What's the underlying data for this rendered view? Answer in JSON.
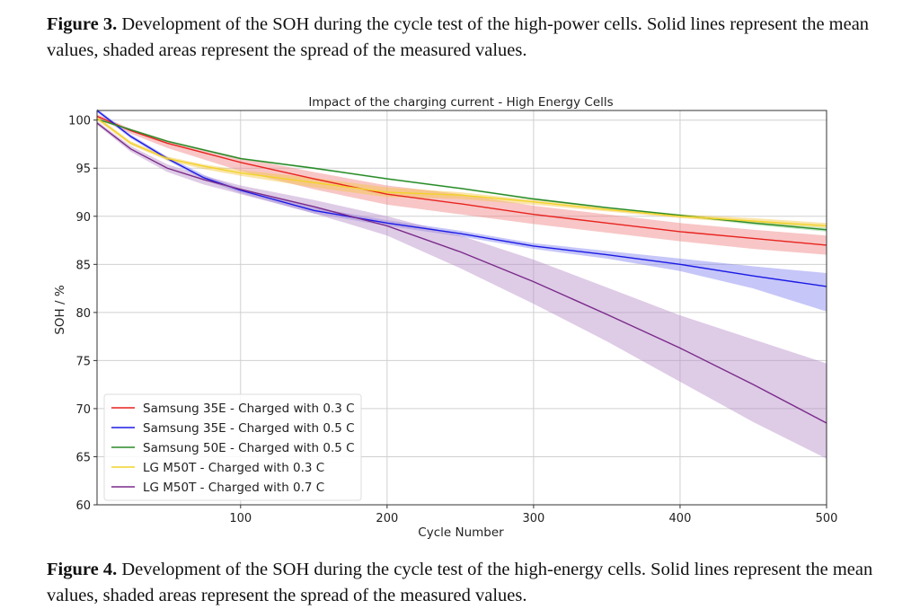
{
  "captions": {
    "top": {
      "label": "Figure 3.",
      "text": " Development of the SOH during the cycle test of the high-power cells. Solid lines represent the mean values, shaded areas represent the spread of the measured values."
    },
    "bottom": {
      "label": "Figure 4.",
      "text": " Development of the SOH during the cycle test of the high-energy cells. Solid lines represent the mean values, shaded areas represent the spread of the measured values."
    }
  },
  "chart_data": {
    "type": "line",
    "title": "Impact of the charging current - High Energy Cells",
    "xlabel": "Cycle Number",
    "ylabel": "SOH / %",
    "xlim": [
      2,
      500
    ],
    "ylim": [
      60,
      101
    ],
    "xticks": [
      100,
      200,
      300,
      400,
      500
    ],
    "yticks": [
      60,
      65,
      70,
      75,
      80,
      85,
      90,
      95,
      100
    ],
    "grid": true,
    "legend_position": "bottom-left",
    "x": [
      2,
      25,
      50,
      75,
      100,
      150,
      200,
      250,
      300,
      350,
      400,
      450,
      500
    ],
    "series": [
      {
        "name": "Samsung 35E - Charged with 0.3 C",
        "color": "#e8231f",
        "band_color": "#f08080",
        "values": [
          100.4,
          98.9,
          97.6,
          96.6,
          95.6,
          93.9,
          92.3,
          91.3,
          90.2,
          89.3,
          88.4,
          87.7,
          87.0
        ],
        "lower": [
          100.2,
          98.6,
          97.1,
          95.9,
          94.7,
          92.8,
          91.2,
          90.2,
          89.2,
          88.3,
          87.4,
          86.6,
          86.0
        ],
        "upper": [
          100.6,
          99.1,
          97.9,
          97.0,
          96.1,
          94.6,
          93.2,
          92.3,
          91.1,
          90.2,
          89.3,
          88.6,
          88.0
        ]
      },
      {
        "name": "Samsung 35E - Charged with 0.5 C",
        "color": "#1a1ae6",
        "band_color": "#8080f0",
        "values": [
          101.0,
          98.3,
          96.0,
          94.0,
          92.7,
          90.6,
          89.3,
          88.2,
          86.9,
          86.0,
          85.0,
          83.8,
          82.7
        ],
        "lower": [
          100.8,
          98.1,
          95.8,
          93.8,
          92.4,
          90.3,
          89.0,
          87.9,
          86.6,
          85.6,
          84.3,
          82.5,
          80.1
        ],
        "upper": [
          101.2,
          98.5,
          96.2,
          94.3,
          92.9,
          90.9,
          89.6,
          88.5,
          87.2,
          86.4,
          85.6,
          84.8,
          84.1
        ]
      },
      {
        "name": "Samsung 50E - Charged with 0.5 C",
        "color": "#2a8a2a",
        "band_color": "#7fcf7f",
        "values": [
          100.1,
          99.0,
          97.8,
          96.9,
          96.0,
          95.0,
          93.9,
          92.9,
          91.8,
          90.9,
          90.1,
          89.3,
          88.6
        ],
        "lower": [
          100.0,
          98.9,
          97.7,
          96.8,
          95.9,
          94.9,
          93.8,
          92.8,
          91.7,
          90.8,
          90.0,
          89.1,
          88.4
        ],
        "upper": [
          100.2,
          99.1,
          97.9,
          97.0,
          96.1,
          95.1,
          94.0,
          93.0,
          91.9,
          91.0,
          90.2,
          89.5,
          88.8
        ]
      },
      {
        "name": "LG M50T - Charged with 0.3 C",
        "color": "#f2d32a",
        "band_color": "#f5c542",
        "values": [
          100.2,
          97.6,
          96.0,
          95.2,
          94.5,
          93.5,
          92.5,
          92.2,
          91.5,
          90.7,
          90.0,
          89.5,
          89.0
        ],
        "lower": [
          100.0,
          97.4,
          95.8,
          94.9,
          94.2,
          93.0,
          92.0,
          91.8,
          91.2,
          90.5,
          89.8,
          89.3,
          88.8
        ],
        "upper": [
          100.4,
          97.8,
          96.2,
          95.4,
          94.8,
          94.0,
          93.0,
          92.5,
          91.7,
          90.9,
          90.2,
          89.8,
          89.3
        ]
      },
      {
        "name": "LG M50T - Charged with 0.7 C",
        "color": "#7a2a8a",
        "band_color": "#b58cc8",
        "values": [
          99.7,
          97.0,
          95.0,
          93.8,
          92.8,
          91.0,
          89.0,
          86.3,
          83.2,
          79.8,
          76.3,
          72.5,
          68.5
        ],
        "lower": [
          99.5,
          96.7,
          94.6,
          93.3,
          92.3,
          90.3,
          88.0,
          84.6,
          80.9,
          77.0,
          72.8,
          68.6,
          64.8
        ],
        "upper": [
          99.9,
          97.3,
          95.4,
          94.2,
          93.2,
          91.7,
          90.0,
          88.0,
          85.5,
          82.6,
          79.7,
          77.2,
          74.7
        ]
      }
    ]
  }
}
